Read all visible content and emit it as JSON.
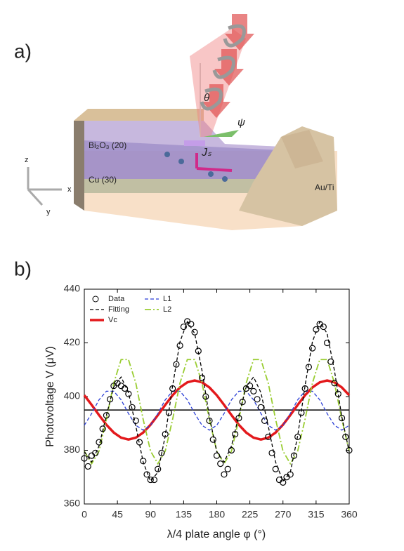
{
  "panel_a": {
    "label": "a)",
    "theta": "θ",
    "psi": "ψ",
    "current": "Jₛ",
    "layer1": "Bi₂O₃ (20)",
    "layer2": "Cu (30)",
    "contact": "Au/Ti",
    "axis_z": "z",
    "axis_x": "x",
    "axis_y": "y"
  },
  "panel_b": {
    "label": "b)"
  },
  "chart_data": {
    "type": "line",
    "x_label": "λ/4 plate angle φ (°)",
    "y_label": "Photovoltage V (μV)",
    "xlim": [
      0,
      360
    ],
    "xticks": [
      0,
      45,
      90,
      135,
      180,
      225,
      270,
      315,
      360
    ],
    "ylim": [
      360,
      440
    ],
    "yticks": [
      360,
      380,
      400,
      420,
      440
    ],
    "reference_line": 395,
    "legend": "upper left",
    "x": [
      0,
      10,
      20,
      30,
      40,
      50,
      60,
      70,
      80,
      90,
      100,
      110,
      120,
      130,
      140,
      150,
      160,
      170,
      180,
      190,
      200,
      210,
      220,
      230,
      240,
      250,
      260,
      270,
      280,
      290,
      300,
      310,
      320,
      330,
      340,
      350,
      360
    ],
    "series": [
      {
        "name": "Data",
        "color": "#000000",
        "marker": "circle",
        "line_style": "none",
        "x": [
          0,
          5,
          10,
          15,
          20,
          25,
          30,
          35,
          40,
          45,
          50,
          55,
          60,
          65,
          70,
          75,
          80,
          85,
          90,
          95,
          100,
          105,
          110,
          115,
          120,
          125,
          130,
          135,
          140,
          145,
          150,
          155,
          160,
          165,
          170,
          175,
          180,
          185,
          190,
          195,
          200,
          205,
          210,
          215,
          220,
          225,
          230,
          235,
          240,
          245,
          250,
          255,
          260,
          265,
          270,
          275,
          280,
          285,
          290,
          295,
          300,
          305,
          310,
          315,
          320,
          325,
          330,
          335,
          340,
          345,
          350,
          355,
          360
        ],
        "values": [
          377,
          374,
          378,
          379,
          383,
          388,
          393,
          399,
          404,
          405,
          404,
          403,
          401,
          396,
          391,
          383,
          376,
          371,
          369,
          369,
          373,
          379,
          386,
          394,
          403,
          412,
          419,
          426,
          428,
          427,
          424,
          417,
          407,
          400,
          391,
          384,
          378,
          375,
          371,
          373,
          380,
          386,
          392,
          398,
          403,
          404,
          402,
          399,
          396,
          391,
          385,
          379,
          373,
          369,
          368,
          370,
          371,
          378,
          385,
          394,
          403,
          411,
          418,
          425,
          427,
          426,
          420,
          413,
          405,
          401,
          392,
          385,
          380
        ]
      },
      {
        "name": "Fitting",
        "color": "#000000",
        "line_style": "dashed",
        "values": [
          379.5,
          375.6,
          381.6,
          393.0,
          403.6,
          407.3,
          401.5,
          389.0,
          375.6,
          368.5,
          371.8,
          385.4,
          404.0,
          420.4,
          427.9,
          423.5,
          409.6,
          392.4,
          379.5,
          375.6,
          381.6,
          393.0,
          403.6,
          407.3,
          401.5,
          389.0,
          375.6,
          368.5,
          371.8,
          385.4,
          404.0,
          420.4,
          427.9,
          423.5,
          409.6,
          392.4,
          379.5
        ]
      },
      {
        "name": "L1",
        "color": "#2b3fd6",
        "line_style": "dashed",
        "values": [
          389.3,
          393.7,
          398.8,
          402.0,
          402.0,
          398.8,
          393.7,
          389.3,
          387.5,
          389.3,
          393.7,
          398.8,
          402.0,
          402.0,
          398.8,
          393.7,
          389.3,
          387.5,
          389.3,
          393.7,
          398.8,
          402.0,
          402.0,
          398.8,
          393.7,
          389.3,
          387.5,
          389.3,
          393.7,
          398.8,
          402.0,
          402.0,
          398.8,
          393.7,
          389.3,
          387.5,
          389.3
        ]
      },
      {
        "name": "L2",
        "color": "#9acd32",
        "line_style": "dash-dot",
        "values": [
          379.7,
          375.0,
          379.7,
          391.5,
          405.0,
          413.8,
          413.8,
          405.0,
          391.5,
          379.7,
          375.0,
          379.7,
          391.5,
          405.0,
          413.8,
          413.8,
          405.0,
          391.5,
          379.7,
          375.0,
          379.7,
          391.5,
          405.0,
          413.8,
          413.8,
          405.0,
          391.5,
          379.7,
          375.0,
          379.7,
          391.5,
          405.0,
          413.8,
          413.8,
          405.0,
          391.5,
          379.7
        ]
      },
      {
        "name": "Vc",
        "color": "#e3191c",
        "line_style": "thick",
        "values": [
          400.5,
          396.9,
          393.1,
          389.5,
          386.6,
          384.7,
          384.0,
          384.7,
          386.6,
          389.5,
          393.1,
          396.9,
          400.5,
          403.4,
          405.3,
          406.0,
          405.3,
          403.4,
          400.5,
          396.9,
          393.1,
          389.5,
          386.6,
          384.7,
          384.0,
          384.7,
          386.6,
          389.5,
          393.1,
          396.9,
          400.5,
          403.4,
          405.3,
          406.0,
          405.3,
          403.4,
          400.5
        ]
      }
    ]
  }
}
